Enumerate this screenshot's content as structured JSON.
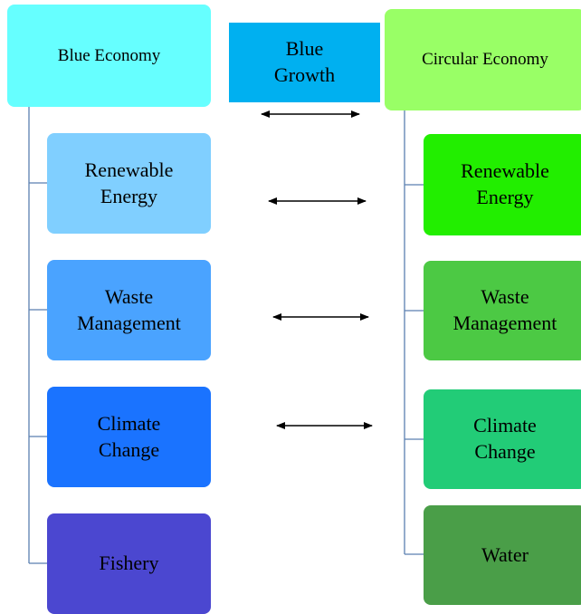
{
  "blue_economy": {
    "label": "Blue Economy",
    "children": [
      "Renewable Energy",
      "Waste Management",
      "Climate Change",
      "Fishery"
    ]
  },
  "blue_growth": {
    "label": "Blue Growth"
  },
  "circular_economy": {
    "label": "Circular Economy",
    "children": [
      "Renewable Energy",
      "Waste Management",
      "Climate Change",
      "Water"
    ]
  }
}
